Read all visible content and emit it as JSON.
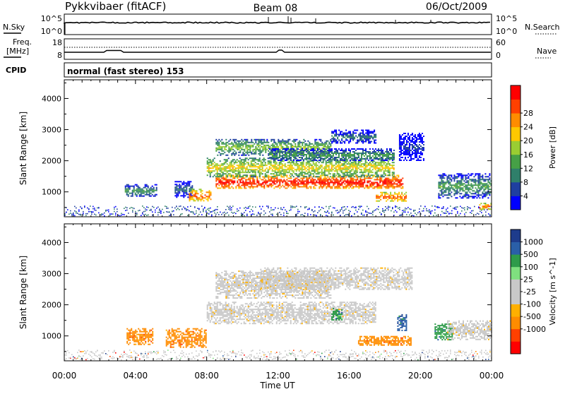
{
  "header": {
    "station": "Pykkvibaer (fitACF)",
    "beam": "Beam 08",
    "date": "06/Oct/2009"
  },
  "noise_panel": {
    "left_label": "N.Sky",
    "right_label": "N.Search",
    "left_ticks": [
      "10^5",
      "10^0"
    ],
    "right_ticks": [
      "10^5",
      "10^0"
    ]
  },
  "freq_panel": {
    "left_label_1": "Freq.",
    "left_label_2": "[MHz]",
    "right_label": "Nave",
    "left_ticks": [
      "18",
      "8"
    ],
    "right_ticks": [
      "60",
      "0"
    ]
  },
  "cpid": {
    "label": "CPID",
    "value": "normal (fast stereo) 153"
  },
  "chart_data": [
    {
      "type": "heatmap",
      "quantity": "Power",
      "ylabel": "Slant Range [km]",
      "xlabel": "Time UT",
      "x_ticks": [
        "00:00",
        "04:00",
        "08:00",
        "12:00",
        "16:00",
        "20:00",
        "00:00"
      ],
      "x_hours": [
        0,
        4,
        8,
        12,
        16,
        20,
        24
      ],
      "xlim_hours": [
        0,
        24
      ],
      "y_ticks": [
        1000,
        2000,
        3000,
        4000
      ],
      "ylim": [
        200,
        4600
      ],
      "colorbar": {
        "label": "Power [dB]",
        "ticks": [
          "28",
          "24",
          "20",
          "16",
          "12",
          "8",
          "4"
        ],
        "colors": [
          "#0000ff",
          "#1f3fa0",
          "#2f7f6a",
          "#46a046",
          "#9acd32",
          "#ffc800",
          "#ff8c00",
          "#ff4000",
          "#ff0000"
        ]
      },
      "regions": [
        {
          "t0": 3.4,
          "t1": 5.2,
          "r0": 850,
          "r1": 1250,
          "level": 3
        },
        {
          "t0": 6.2,
          "t1": 7.2,
          "r0": 850,
          "r1": 1350,
          "level": 2
        },
        {
          "t0": 7.0,
          "t1": 8.2,
          "r0": 700,
          "r1": 1100,
          "level": 7
        },
        {
          "t0": 8.5,
          "t1": 19.0,
          "r0": 1100,
          "r1": 1550,
          "level": 8
        },
        {
          "t0": 8.0,
          "t1": 18.5,
          "r0": 1500,
          "r1": 2100,
          "level": 5
        },
        {
          "t0": 8.5,
          "t1": 15.0,
          "r0": 2200,
          "r1": 2700,
          "level": 4
        },
        {
          "t0": 11.5,
          "t1": 18.5,
          "r0": 2000,
          "r1": 2400,
          "level": 3
        },
        {
          "t0": 15.0,
          "t1": 17.5,
          "r0": 2550,
          "r1": 3000,
          "level": 2
        },
        {
          "t0": 17.5,
          "t1": 19.2,
          "r0": 700,
          "r1": 1000,
          "level": 7
        },
        {
          "t0": 18.8,
          "t1": 20.2,
          "r0": 2000,
          "r1": 2900,
          "level": 1
        },
        {
          "t0": 21.0,
          "t1": 24.0,
          "r0": 800,
          "r1": 1600,
          "level": 3
        },
        {
          "t0": 23.3,
          "t1": 24.0,
          "r0": 450,
          "r1": 650,
          "level": 7
        }
      ]
    },
    {
      "type": "heatmap",
      "quantity": "Velocity",
      "ylabel": "Slant Range [km]",
      "xlabel": "Time UT",
      "x_ticks": [
        "00:00",
        "04:00",
        "08:00",
        "12:00",
        "16:00",
        "20:00",
        "00:00"
      ],
      "x_hours": [
        0,
        4,
        8,
        12,
        16,
        20,
        24
      ],
      "xlim_hours": [
        0,
        24
      ],
      "y_ticks": [
        1000,
        2000,
        3000,
        4000
      ],
      "ylim": [
        200,
        4600
      ],
      "colorbar": {
        "label": "Velocity [m s^-1]",
        "ticks": [
          "1000",
          "500",
          "100",
          "25",
          "-25",
          "-100",
          "-500",
          "-1000"
        ],
        "colors": [
          "#ff0000",
          "#ff4000",
          "#ff8c00",
          "#ffb000",
          "#c8c8c8",
          "#c8c8c8",
          "#7fe07f",
          "#2e9b4a",
          "#2a5fa8",
          "#1e3c8c"
        ]
      },
      "regions": [
        {
          "t0": 8.0,
          "t1": 17.5,
          "r0": 1400,
          "r1": 2100,
          "level": 4
        },
        {
          "t0": 8.5,
          "t1": 15.0,
          "r0": 2200,
          "r1": 3100,
          "level": 4
        },
        {
          "t0": 11.0,
          "t1": 19.5,
          "r0": 2500,
          "r1": 3200,
          "level": 4
        },
        {
          "t0": 3.5,
          "t1": 5.0,
          "r0": 750,
          "r1": 1250,
          "level": 2
        },
        {
          "t0": 5.7,
          "t1": 8.0,
          "r0": 650,
          "r1": 1250,
          "level": 2
        },
        {
          "t0": 16.5,
          "t1": 19.5,
          "r0": 700,
          "r1": 1000,
          "level": 2
        },
        {
          "t0": 15.0,
          "t1": 15.6,
          "r0": 1500,
          "r1": 1900,
          "level": 7
        },
        {
          "t0": 18.7,
          "t1": 19.2,
          "r0": 1200,
          "r1": 1700,
          "level": 8
        },
        {
          "t0": 20.8,
          "t1": 21.8,
          "r0": 900,
          "r1": 1400,
          "level": 7
        },
        {
          "t0": 21.5,
          "t1": 24.0,
          "r0": 900,
          "r1": 1500,
          "level": 4
        }
      ]
    }
  ]
}
